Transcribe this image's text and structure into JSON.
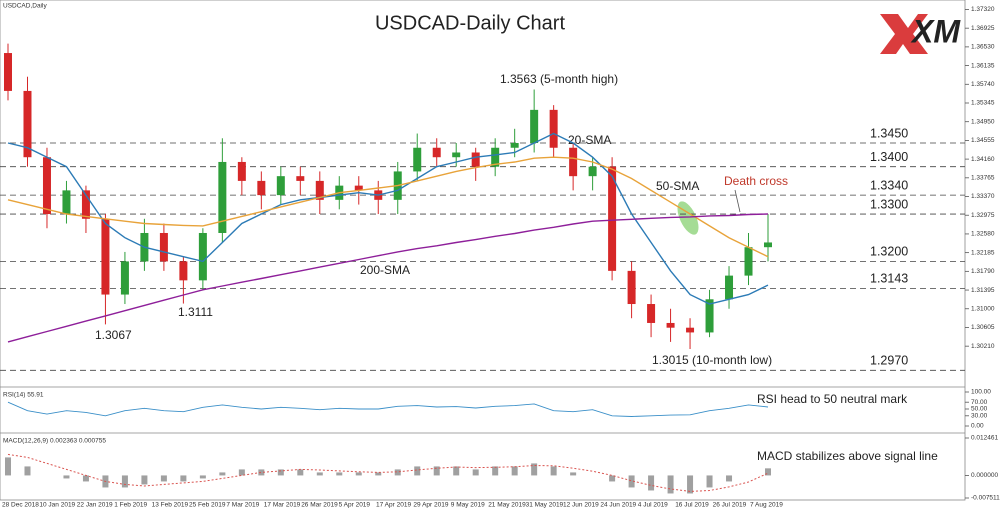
{
  "chart_data": [
    {
      "type": "candlestick",
      "label": "USDCAD,Daily",
      "title": "USDCAD-Daily Chart",
      "logo": "XM",
      "xtick_labels": [
        "28 Dec 2018",
        "10 Jan 2019",
        "22 Jan 2019",
        "1 Feb 2019",
        "13 Feb 2019",
        "25 Feb 2019",
        "7 Mar 2019",
        "17 Mar 2019",
        "26 Mar 2019",
        "5 Apr 2019",
        "17 Apr 2019",
        "29 Apr 2019",
        "9 May 2019",
        "21 May 2019",
        "31 May 2019",
        "12 Jun 2019",
        "24 Jun 2019",
        "4 Jul 2019",
        "16 Jul 2019",
        "26 Jul 2019",
        "7 Aug 2019"
      ],
      "open": [
        1.364,
        1.356,
        1.342,
        1.33,
        1.335,
        1.329,
        1.313,
        1.32,
        1.326,
        1.32,
        1.316,
        1.326,
        1.341,
        1.337,
        1.334,
        1.338,
        1.337,
        1.333,
        1.336,
        1.335,
        1.333,
        1.339,
        1.344,
        1.342,
        1.343,
        1.34,
        1.344,
        1.345,
        1.352,
        1.344,
        1.338,
        1.34,
        1.318,
        1.311,
        1.307,
        1.306,
        1.305,
        1.312,
        1.317,
        1.323
      ],
      "high": [
        1.366,
        1.359,
        1.344,
        1.337,
        1.336,
        1.33,
        1.322,
        1.329,
        1.328,
        1.321,
        1.327,
        1.346,
        1.342,
        1.339,
        1.34,
        1.34,
        1.339,
        1.338,
        1.338,
        1.337,
        1.341,
        1.347,
        1.346,
        1.345,
        1.344,
        1.346,
        1.348,
        1.3563,
        1.353,
        1.345,
        1.342,
        1.342,
        1.32,
        1.313,
        1.31,
        1.308,
        1.314,
        1.319,
        1.326,
        1.33
      ],
      "low": [
        1.354,
        1.34,
        1.327,
        1.328,
        1.326,
        1.3067,
        1.311,
        1.318,
        1.318,
        1.3111,
        1.314,
        1.324,
        1.334,
        1.331,
        1.332,
        1.334,
        1.33,
        1.331,
        1.332,
        1.33,
        1.33,
        1.337,
        1.34,
        1.34,
        1.337,
        1.338,
        1.342,
        1.343,
        1.342,
        1.335,
        1.335,
        1.316,
        1.308,
        1.304,
        1.303,
        1.3015,
        1.304,
        1.31,
        1.315,
        1.32
      ],
      "close": [
        1.356,
        1.342,
        1.33,
        1.335,
        1.329,
        1.313,
        1.32,
        1.326,
        1.32,
        1.316,
        1.326,
        1.341,
        1.337,
        1.334,
        1.338,
        1.337,
        1.333,
        1.336,
        1.335,
        1.333,
        1.339,
        1.344,
        1.342,
        1.343,
        1.34,
        1.344,
        1.345,
        1.352,
        1.344,
        1.338,
        1.34,
        1.318,
        1.311,
        1.307,
        1.306,
        1.305,
        1.312,
        1.317,
        1.323,
        1.324
      ],
      "up_color": "#2e9e3a",
      "down_color": "#d62728",
      "series": [
        {
          "name": "20-SMA",
          "color": "#2c7bb6",
          "values": [
            1.345,
            1.344,
            1.342,
            1.34,
            1.334,
            1.328,
            1.325,
            1.323,
            1.322,
            1.321,
            1.32,
            1.324,
            1.328,
            1.33,
            1.332,
            1.333,
            1.3335,
            1.334,
            1.3345,
            1.334,
            1.335,
            1.3375,
            1.34,
            1.341,
            1.342,
            1.3425,
            1.343,
            1.345,
            1.347,
            1.345,
            1.342,
            1.338,
            1.33,
            1.324,
            1.318,
            1.313,
            1.311,
            1.312,
            1.313,
            1.315
          ]
        },
        {
          "name": "50-SMA",
          "color": "#e8a33a",
          "values": [
            1.333,
            1.332,
            1.331,
            1.33,
            1.3295,
            1.329,
            1.3285,
            1.328,
            1.3278,
            1.3276,
            1.3275,
            1.3285,
            1.3295,
            1.3305,
            1.3315,
            1.3325,
            1.3335,
            1.3345,
            1.335,
            1.3355,
            1.336,
            1.337,
            1.338,
            1.339,
            1.3398,
            1.3405,
            1.341,
            1.3418,
            1.342,
            1.3418,
            1.341,
            1.3395,
            1.3375,
            1.335,
            1.3325,
            1.33,
            1.3275,
            1.325,
            1.323,
            1.321
          ]
        },
        {
          "name": "200-SMA",
          "color": "#8e1f9a",
          "values": [
            1.303,
            1.3041,
            1.3052,
            1.3063,
            1.3074,
            1.3085,
            1.3096,
            1.3107,
            1.3118,
            1.3129,
            1.314,
            1.3148,
            1.3156,
            1.3164,
            1.3172,
            1.318,
            1.3188,
            1.3196,
            1.3204,
            1.3212,
            1.322,
            1.3227,
            1.3233,
            1.324,
            1.3246,
            1.3253,
            1.3259,
            1.3266,
            1.3272,
            1.3279,
            1.3285,
            1.3287,
            1.3289,
            1.3291,
            1.3293,
            1.3294,
            1.3296,
            1.3297,
            1.3299,
            1.33
          ]
        }
      ],
      "levels": [
        {
          "value": 1.345,
          "label": "1.3450",
          "color": "#2b3990"
        },
        {
          "value": 1.34,
          "label": "1.3400",
          "color": "#2b3990"
        },
        {
          "value": 1.334,
          "label": "1.3340",
          "color": "#2b3990"
        },
        {
          "value": 1.33,
          "label": "1.3300",
          "color": "#2b3990"
        },
        {
          "value": 1.32,
          "label": "1.3200",
          "color": "#c0392b"
        },
        {
          "value": 1.3143,
          "label": "1.3143",
          "color": "#c0392b"
        },
        {
          "value": 1.297,
          "label": "1.2970",
          "color": "#c0392b"
        }
      ],
      "annotations": [
        "1.3563 (5-month high)",
        "1.3067",
        "1.3111",
        "1.3015 (10-month  low)",
        "Death cross"
      ],
      "ylim": [
        1.2939,
        1.3752
      ],
      "yticks": [
        {
          "value": 1.3732,
          "label": "1.37320"
        },
        {
          "value": 1.36925,
          "label": "1.36925"
        },
        {
          "value": 1.3653,
          "label": "1.36530"
        },
        {
          "value": 1.36135,
          "label": "1.36135"
        },
        {
          "value": 1.3574,
          "label": "1.35740"
        },
        {
          "value": 1.35345,
          "label": "1.35345"
        },
        {
          "value": 1.3495,
          "label": "1.34950"
        },
        {
          "value": 1.34555,
          "label": "1.34555"
        },
        {
          "value": 1.3416,
          "label": "1.34160"
        },
        {
          "value": 1.33765,
          "label": "1.33765"
        },
        {
          "value": 1.3337,
          "label": "1.33370"
        },
        {
          "value": 1.32975,
          "label": "1.32975"
        },
        {
          "value": 1.3258,
          "label": "1.32580"
        },
        {
          "value": 1.32185,
          "label": "1.32185"
        },
        {
          "value": 1.3179,
          "label": "1.31790"
        },
        {
          "value": 1.31395,
          "label": "1.31395"
        },
        {
          "value": 1.31,
          "label": "1.31000"
        },
        {
          "value": 1.30605,
          "label": "1.30605"
        },
        {
          "value": 1.3021,
          "label": "1.30210"
        }
      ]
    },
    {
      "type": "line",
      "label": "RSI(14) 55.91",
      "annotation": "RSI head to 50 neutral mark",
      "series": [
        {
          "name": "RSI(14)",
          "color": "#3a8fc8",
          "values": [
            70,
            45,
            35,
            45,
            40,
            30,
            45,
            52,
            45,
            42,
            55,
            62,
            55,
            50,
            55,
            52,
            48,
            52,
            50,
            50,
            58,
            60,
            56,
            57,
            53,
            58,
            60,
            65,
            45,
            42,
            48,
            30,
            28,
            30,
            32,
            33,
            45,
            52,
            62,
            55.91
          ]
        }
      ],
      "ylim": [
        0,
        100
      ],
      "yticks": [
        {
          "value": 100,
          "label": "100.00"
        },
        {
          "value": 70,
          "label": "70.00"
        },
        {
          "value": 50,
          "label": "50.00"
        },
        {
          "value": 30,
          "label": "30.00"
        },
        {
          "value": 0,
          "label": "0.00"
        }
      ]
    },
    {
      "type": "macd",
      "label": "MACD(12,26,9) 0.002363 0.000755",
      "annotation": "MACD stabilizes above signal line",
      "series": [
        {
          "name": "MACD",
          "color": "#a0a0a0",
          "values": [
            0.006,
            0.003,
            0.0,
            -0.001,
            -0.002,
            -0.004,
            -0.004,
            -0.003,
            -0.002,
            -0.002,
            -0.001,
            0.001,
            0.002,
            0.002,
            0.002,
            0.002,
            0.001,
            0.001,
            0.001,
            0.001,
            0.002,
            0.003,
            0.003,
            0.003,
            0.002,
            0.003,
            0.003,
            0.004,
            0.003,
            0.001,
            0.0,
            -0.002,
            -0.004,
            -0.005,
            -0.006,
            -0.006,
            -0.004,
            -0.002,
            0.0,
            0.002363
          ]
        },
        {
          "name": "Signal",
          "color": "#d9534f",
          "values": [
            0.007,
            0.006,
            0.004,
            0.002,
            0.0,
            -0.002,
            -0.003,
            -0.0035,
            -0.003,
            -0.0025,
            -0.002,
            -0.001,
            0.0,
            0.001,
            0.0015,
            0.002,
            0.0018,
            0.0015,
            0.0012,
            0.001,
            0.0012,
            0.0018,
            0.0024,
            0.0028,
            0.0026,
            0.0027,
            0.0029,
            0.0033,
            0.0032,
            0.0024,
            0.0014,
            0.0,
            -0.0018,
            -0.0033,
            -0.0045,
            -0.0053,
            -0.005,
            -0.0038,
            -0.0022,
            0.000755
          ]
        }
      ],
      "ylim": [
        -0.00751,
        0.01246
      ],
      "yticks": [
        {
          "value": 0.01246,
          "label": "0.012461"
        },
        {
          "value": 0,
          "label": "0.000000"
        },
        {
          "value": -0.00751,
          "label": "-0.007511"
        }
      ]
    }
  ]
}
